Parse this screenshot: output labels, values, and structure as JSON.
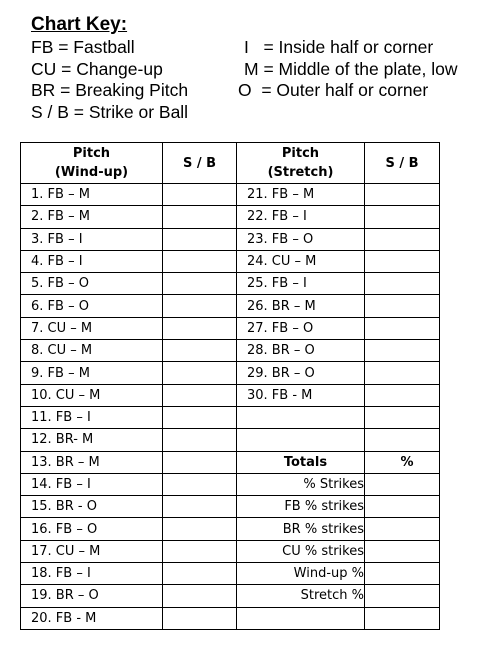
{
  "key": {
    "title": "Chart Key:",
    "rows": [
      {
        "left": "FB = Fastball",
        "right": "I   = Inside half or corner"
      },
      {
        "left": "CU = Change-up",
        "right": "M = Middle of the plate, low"
      },
      {
        "left": "BR = Breaking Pitch",
        "right": "O  = Outer half or corner"
      },
      {
        "left": "S / B = Strike or Ball",
        "right": ""
      }
    ]
  },
  "table": {
    "headers": {
      "col1_line1": "Pitch",
      "col1_line2": "(Wind-up)",
      "col2": "S / B",
      "col3_line1": "Pitch",
      "col3_line2": "(Stretch)",
      "col4": "S / B"
    },
    "windup": [
      "1. FB – M",
      "2. FB – M",
      "3. FB – I",
      "4. FB – I",
      "5. FB – O",
      "6. FB – O",
      "7. CU – M",
      "8. CU – M",
      "9. FB – M",
      "10. CU – M",
      "11. FB – I",
      "12. BR- M",
      "13. BR – M",
      "14. FB – I",
      "15. BR - O",
      "16. FB – O",
      "17. CU – M",
      "18. FB – I",
      "19. BR – O",
      "20. FB - M"
    ],
    "stretch": [
      "21. FB – M",
      "22. FB – I",
      "23. FB – O",
      "24. CU – M",
      "25. FB – I",
      "26. BR – M",
      "27. FB – O",
      "28. BR – O",
      "29. BR – O",
      "30. FB - M",
      "",
      "",
      "Totals",
      "% Strikes",
      "FB % strikes",
      "BR % strikes",
      "CU % strikes",
      "Wind-up %",
      "Stretch %",
      ""
    ],
    "col4": [
      "",
      "",
      "",
      "",
      "",
      "",
      "",
      "",
      "",
      "",
      "",
      "",
      "%",
      "",
      "",
      "",
      "",
      "",
      "",
      ""
    ]
  }
}
